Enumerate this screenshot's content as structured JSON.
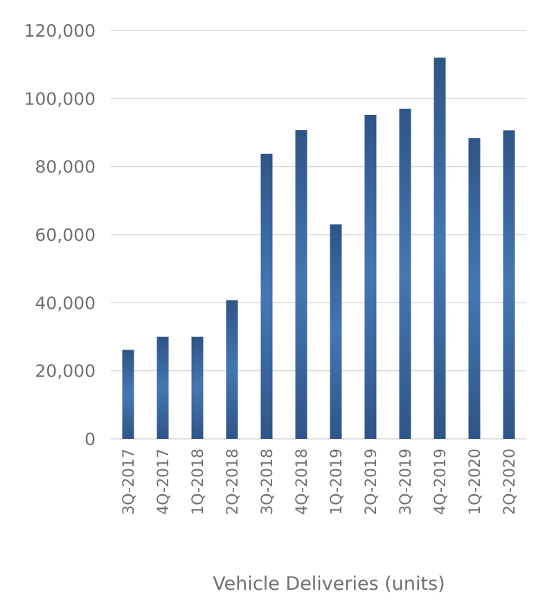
{
  "chart_data": {
    "type": "bar",
    "title": "",
    "xlabel": "Vehicle Deliveries (units)",
    "ylabel": "",
    "categories": [
      "3Q-2017",
      "4Q-2017",
      "1Q-2018",
      "2Q-2018",
      "3Q-2018",
      "4Q-2018",
      "1Q-2019",
      "2Q-2019",
      "3Q-2019",
      "4Q-2019",
      "1Q-2020",
      "2Q-2020"
    ],
    "values": [
      26150,
      29980,
      29980,
      40740,
      83780,
      90700,
      63000,
      95200,
      97000,
      112000,
      88400,
      90650
    ],
    "ylim": [
      0,
      120000
    ],
    "yticks": [
      0,
      20000,
      40000,
      60000,
      80000,
      100000,
      120000
    ],
    "ytick_labels": [
      "0",
      "20,000",
      "40,000",
      "60,000",
      "80,000",
      "100,000",
      "120,000"
    ],
    "grid": true,
    "legend": "none",
    "colors": {
      "bar_edge": "#2e5586",
      "bar_center": "#4577b2",
      "grid": "#d9d9d9",
      "text": "#707070"
    }
  }
}
